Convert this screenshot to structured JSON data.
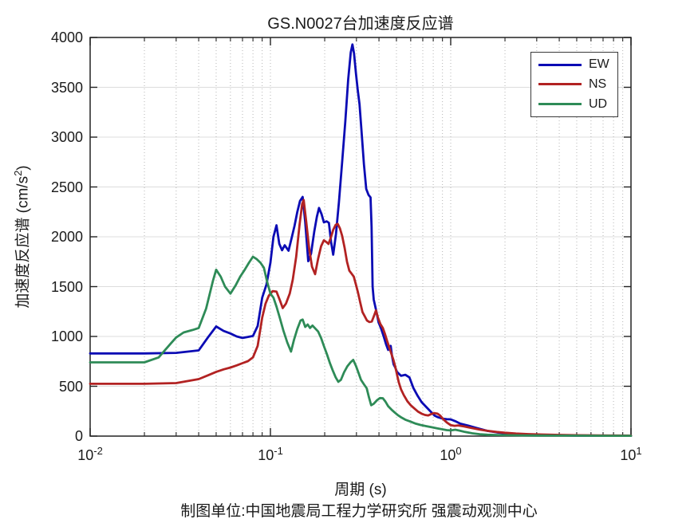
{
  "figure": {
    "title": "GS.N0027台加速度反应谱",
    "xlabel": "周期 (s)",
    "ylabel": {
      "prefix": "加速度反应谱 (cm/s",
      "sup": "2",
      "suffix": ")"
    },
    "caption": "制图单位:中国地震局工程力学研究所 强震动观测中心"
  },
  "legend": {
    "items": [
      {
        "label": "EW",
        "color": "#0b0bb4"
      },
      {
        "label": "NS",
        "color": "#b22222"
      },
      {
        "label": "UD",
        "color": "#2e8b57"
      }
    ]
  },
  "axes": {
    "x": {
      "scale": "log",
      "min": 0.01,
      "max": 10,
      "ticks": [
        {
          "value": 0.01,
          "base": "10",
          "exp": "-2"
        },
        {
          "value": 0.1,
          "base": "10",
          "exp": "-1"
        },
        {
          "value": 1,
          "base": "10",
          "exp": "0"
        },
        {
          "value": 10,
          "base": "10",
          "exp": "1"
        }
      ]
    },
    "y": {
      "scale": "linear",
      "min": 0,
      "max": 4000,
      "ticks": [
        0,
        500,
        1000,
        1500,
        2000,
        2500,
        3000,
        3500,
        4000
      ]
    }
  },
  "chart_data": {
    "type": "line",
    "title": "GS.N0027台加速度反应谱",
    "xlabel": "周期 (s)",
    "ylabel": "加速度反应谱 (cm/s2)",
    "xscale": "log",
    "xlim": [
      0.01,
      10
    ],
    "ylim": [
      0,
      4000
    ],
    "grid": true,
    "minor_grid": true,
    "legend_position": "top-right",
    "series": [
      {
        "name": "EW",
        "color": "#0b0bb4",
        "points": [
          [
            0.01,
            830
          ],
          [
            0.02,
            830
          ],
          [
            0.03,
            835
          ],
          [
            0.04,
            860
          ],
          [
            0.045,
            990
          ],
          [
            0.05,
            1100
          ],
          [
            0.055,
            1055
          ],
          [
            0.06,
            1030
          ],
          [
            0.065,
            1000
          ],
          [
            0.07,
            985
          ],
          [
            0.075,
            995
          ],
          [
            0.08,
            1005
          ],
          [
            0.085,
            1105
          ],
          [
            0.09,
            1390
          ],
          [
            0.095,
            1520
          ],
          [
            0.1,
            1740
          ],
          [
            0.104,
            2000
          ],
          [
            0.108,
            2115
          ],
          [
            0.112,
            1930
          ],
          [
            0.116,
            1865
          ],
          [
            0.12,
            1915
          ],
          [
            0.126,
            1860
          ],
          [
            0.131,
            1985
          ],
          [
            0.136,
            2110
          ],
          [
            0.141,
            2250
          ],
          [
            0.146,
            2360
          ],
          [
            0.151,
            2400
          ],
          [
            0.156,
            2150
          ],
          [
            0.162,
            1755
          ],
          [
            0.168,
            1830
          ],
          [
            0.175,
            2050
          ],
          [
            0.181,
            2200
          ],
          [
            0.186,
            2290
          ],
          [
            0.192,
            2230
          ],
          [
            0.198,
            2145
          ],
          [
            0.205,
            2155
          ],
          [
            0.211,
            2140
          ],
          [
            0.217,
            1950
          ],
          [
            0.223,
            1820
          ],
          [
            0.231,
            2030
          ],
          [
            0.24,
            2350
          ],
          [
            0.25,
            2750
          ],
          [
            0.26,
            3150
          ],
          [
            0.27,
            3580
          ],
          [
            0.279,
            3850
          ],
          [
            0.285,
            3930
          ],
          [
            0.291,
            3840
          ],
          [
            0.298,
            3640
          ],
          [
            0.305,
            3470
          ],
          [
            0.312,
            3330
          ],
          [
            0.32,
            3060
          ],
          [
            0.33,
            2730
          ],
          [
            0.34,
            2480
          ],
          [
            0.35,
            2420
          ],
          [
            0.359,
            2395
          ],
          [
            0.364,
            2100
          ],
          [
            0.369,
            1500
          ],
          [
            0.374,
            1370
          ],
          [
            0.385,
            1270
          ],
          [
            0.398,
            1140
          ],
          [
            0.41,
            1085
          ],
          [
            0.425,
            1000
          ],
          [
            0.438,
            920
          ],
          [
            0.45,
            865
          ],
          [
            0.465,
            905
          ],
          [
            0.473,
            800
          ],
          [
            0.482,
            720
          ],
          [
            0.492,
            690
          ],
          [
            0.503,
            645
          ],
          [
            0.53,
            605
          ],
          [
            0.56,
            615
          ],
          [
            0.59,
            590
          ],
          [
            0.62,
            485
          ],
          [
            0.655,
            405
          ],
          [
            0.69,
            340
          ],
          [
            0.725,
            300
          ],
          [
            0.775,
            245
          ],
          [
            0.815,
            205
          ],
          [
            0.85,
            190
          ],
          [
            0.9,
            175
          ],
          [
            0.95,
            170
          ],
          [
            1.0,
            168
          ],
          [
            1.06,
            150
          ],
          [
            1.13,
            125
          ],
          [
            1.25,
            105
          ],
          [
            1.4,
            80
          ],
          [
            1.6,
            52
          ],
          [
            1.8,
            38
          ],
          [
            2.0,
            28
          ],
          [
            2.3,
            20
          ],
          [
            2.7,
            15
          ],
          [
            3.2,
            11
          ],
          [
            4.0,
            8
          ],
          [
            5.0,
            6
          ],
          [
            6.5,
            5
          ],
          [
            8.0,
            4
          ],
          [
            10.0,
            3
          ]
        ]
      },
      {
        "name": "NS",
        "color": "#b22222",
        "points": [
          [
            0.01,
            525
          ],
          [
            0.02,
            525
          ],
          [
            0.03,
            532
          ],
          [
            0.04,
            572
          ],
          [
            0.045,
            610
          ],
          [
            0.05,
            645
          ],
          [
            0.055,
            670
          ],
          [
            0.06,
            688
          ],
          [
            0.065,
            710
          ],
          [
            0.07,
            732
          ],
          [
            0.075,
            752
          ],
          [
            0.08,
            790
          ],
          [
            0.085,
            905
          ],
          [
            0.09,
            1190
          ],
          [
            0.094,
            1330
          ],
          [
            0.098,
            1410
          ],
          [
            0.103,
            1455
          ],
          [
            0.108,
            1450
          ],
          [
            0.113,
            1360
          ],
          [
            0.117,
            1285
          ],
          [
            0.122,
            1330
          ],
          [
            0.128,
            1430
          ],
          [
            0.133,
            1570
          ],
          [
            0.139,
            1800
          ],
          [
            0.145,
            2120
          ],
          [
            0.15,
            2330
          ],
          [
            0.153,
            2370
          ],
          [
            0.158,
            2150
          ],
          [
            0.164,
            1880
          ],
          [
            0.17,
            1700
          ],
          [
            0.177,
            1625
          ],
          [
            0.184,
            1780
          ],
          [
            0.191,
            1905
          ],
          [
            0.198,
            1965
          ],
          [
            0.205,
            1945
          ],
          [
            0.21,
            1928
          ],
          [
            0.216,
            1990
          ],
          [
            0.223,
            2070
          ],
          [
            0.23,
            2120
          ],
          [
            0.236,
            2130
          ],
          [
            0.243,
            2085
          ],
          [
            0.25,
            2010
          ],
          [
            0.258,
            1890
          ],
          [
            0.266,
            1750
          ],
          [
            0.274,
            1660
          ],
          [
            0.282,
            1630
          ],
          [
            0.29,
            1600
          ],
          [
            0.298,
            1520
          ],
          [
            0.306,
            1440
          ],
          [
            0.315,
            1340
          ],
          [
            0.324,
            1245
          ],
          [
            0.333,
            1205
          ],
          [
            0.343,
            1160
          ],
          [
            0.354,
            1145
          ],
          [
            0.365,
            1150
          ],
          [
            0.376,
            1210
          ],
          [
            0.385,
            1262
          ],
          [
            0.395,
            1190
          ],
          [
            0.407,
            1125
          ],
          [
            0.42,
            1085
          ],
          [
            0.433,
            1020
          ],
          [
            0.445,
            950
          ],
          [
            0.458,
            880
          ],
          [
            0.468,
            830
          ],
          [
            0.48,
            770
          ],
          [
            0.492,
            700
          ],
          [
            0.503,
            620
          ],
          [
            0.515,
            540
          ],
          [
            0.53,
            470
          ],
          [
            0.55,
            410
          ],
          [
            0.575,
            350
          ],
          [
            0.6,
            310
          ],
          [
            0.63,
            275
          ],
          [
            0.66,
            245
          ],
          [
            0.69,
            225
          ],
          [
            0.72,
            212
          ],
          [
            0.75,
            207
          ],
          [
            0.78,
            222
          ],
          [
            0.81,
            231
          ],
          [
            0.845,
            225
          ],
          [
            0.875,
            205
          ],
          [
            0.91,
            170
          ],
          [
            0.95,
            138
          ],
          [
            1.0,
            110
          ],
          [
            1.05,
            103
          ],
          [
            1.1,
            107
          ],
          [
            1.18,
            98
          ],
          [
            1.3,
            82
          ],
          [
            1.45,
            65
          ],
          [
            1.6,
            53
          ],
          [
            1.8,
            42
          ],
          [
            2.0,
            34
          ],
          [
            2.3,
            26
          ],
          [
            2.7,
            20
          ],
          [
            3.2,
            16
          ],
          [
            4.0,
            12
          ],
          [
            5.0,
            9
          ],
          [
            6.5,
            7
          ],
          [
            8.0,
            6
          ],
          [
            10.0,
            5
          ]
        ]
      },
      {
        "name": "UD",
        "color": "#2e8b57",
        "points": [
          [
            0.01,
            740
          ],
          [
            0.02,
            740
          ],
          [
            0.024,
            790
          ],
          [
            0.028,
            930
          ],
          [
            0.03,
            990
          ],
          [
            0.033,
            1040
          ],
          [
            0.037,
            1065
          ],
          [
            0.04,
            1085
          ],
          [
            0.044,
            1280
          ],
          [
            0.048,
            1560
          ],
          [
            0.05,
            1670
          ],
          [
            0.053,
            1600
          ],
          [
            0.056,
            1500
          ],
          [
            0.06,
            1430
          ],
          [
            0.064,
            1510
          ],
          [
            0.068,
            1600
          ],
          [
            0.072,
            1670
          ],
          [
            0.076,
            1740
          ],
          [
            0.08,
            1800
          ],
          [
            0.084,
            1775
          ],
          [
            0.088,
            1740
          ],
          [
            0.092,
            1690
          ],
          [
            0.096,
            1545
          ],
          [
            0.1,
            1430
          ],
          [
            0.104,
            1390
          ],
          [
            0.108,
            1300
          ],
          [
            0.113,
            1180
          ],
          [
            0.118,
            1060
          ],
          [
            0.124,
            940
          ],
          [
            0.13,
            848
          ],
          [
            0.135,
            965
          ],
          [
            0.141,
            1075
          ],
          [
            0.147,
            1160
          ],
          [
            0.151,
            1170
          ],
          [
            0.156,
            1095
          ],
          [
            0.161,
            1120
          ],
          [
            0.166,
            1085
          ],
          [
            0.171,
            1110
          ],
          [
            0.177,
            1082
          ],
          [
            0.184,
            1050
          ],
          [
            0.191,
            985
          ],
          [
            0.198,
            905
          ],
          [
            0.206,
            820
          ],
          [
            0.214,
            730
          ],
          [
            0.222,
            655
          ],
          [
            0.23,
            590
          ],
          [
            0.238,
            545
          ],
          [
            0.246,
            565
          ],
          [
            0.256,
            640
          ],
          [
            0.267,
            700
          ],
          [
            0.278,
            740
          ],
          [
            0.288,
            765
          ],
          [
            0.298,
            705
          ],
          [
            0.308,
            635
          ],
          [
            0.318,
            565
          ],
          [
            0.33,
            520
          ],
          [
            0.342,
            480
          ],
          [
            0.352,
            390
          ],
          [
            0.362,
            310
          ],
          [
            0.374,
            325
          ],
          [
            0.39,
            360
          ],
          [
            0.405,
            382
          ],
          [
            0.42,
            380
          ],
          [
            0.435,
            345
          ],
          [
            0.45,
            300
          ],
          [
            0.47,
            265
          ],
          [
            0.49,
            235
          ],
          [
            0.51,
            210
          ],
          [
            0.535,
            185
          ],
          [
            0.56,
            165
          ],
          [
            0.6,
            145
          ],
          [
            0.64,
            125
          ],
          [
            0.68,
            112
          ],
          [
            0.73,
            100
          ],
          [
            0.78,
            90
          ],
          [
            0.84,
            78
          ],
          [
            0.9,
            68
          ],
          [
            0.95,
            60
          ],
          [
            1.0,
            57
          ],
          [
            1.06,
            64
          ],
          [
            1.12,
            55
          ],
          [
            1.2,
            42
          ],
          [
            1.32,
            28
          ],
          [
            1.45,
            19
          ],
          [
            1.6,
            14
          ],
          [
            1.8,
            11
          ],
          [
            2.1,
            9
          ],
          [
            2.5,
            7
          ],
          [
            3.0,
            6
          ],
          [
            4.0,
            5
          ],
          [
            5.5,
            4
          ],
          [
            7.5,
            3
          ],
          [
            10.0,
            3
          ]
        ]
      }
    ]
  }
}
